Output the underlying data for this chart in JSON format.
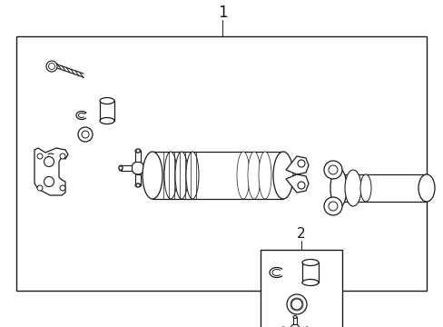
{
  "title": "1",
  "label2": "2",
  "bg_color": "#ffffff",
  "line_color": "#1a1a1a",
  "fig_width": 4.89,
  "fig_height": 3.6,
  "dpi": 100
}
